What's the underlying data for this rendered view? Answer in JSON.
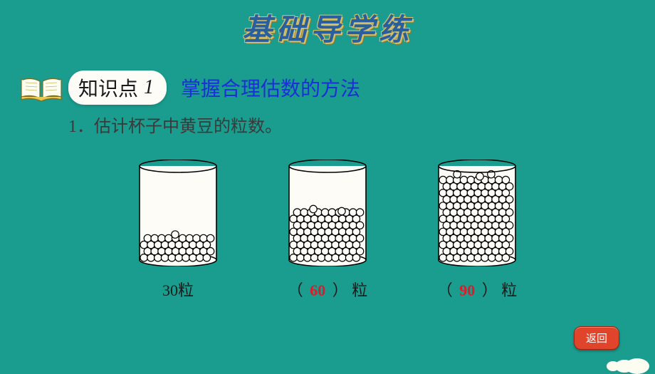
{
  "colors": {
    "bg": "#1a9c8e",
    "title_fill": "#2a5f9e",
    "title_outline": "#d4c068",
    "kp_title": "#1a2fd8",
    "question_text": "#3a3a3a",
    "answer_red": "#d81e2a",
    "badge_bg": "#fdfcf7",
    "btn_bg": "#e0442a",
    "btn_text": "#ffffff"
  },
  "title": "基础导学练",
  "knowledge_point": {
    "badge_label": "知识点",
    "badge_number": "1",
    "title": "掌握合理估数的方法"
  },
  "question": {
    "number": "1",
    "text": "估计杯子中黄豆的粒数。"
  },
  "cups": [
    {
      "fill_level": 0.28,
      "label_prefix": "",
      "value": "30",
      "label_suffix": "粒",
      "is_answer": false
    },
    {
      "fill_level": 0.55,
      "label_prefix": "（",
      "value": "60",
      "label_suffix": "） 粒",
      "is_answer": true
    },
    {
      "fill_level": 0.92,
      "label_prefix": "（",
      "value": "90",
      "label_suffix": "） 粒",
      "is_answer": true
    }
  ],
  "return_button": "返回",
  "cup_style": {
    "width": 120,
    "height": 150,
    "stroke": "#000000",
    "fill_bg": "#fdfcf7",
    "bean_stroke": "#000000",
    "bean_fill": "#fdfcf7",
    "bean_radius": 5.2
  }
}
